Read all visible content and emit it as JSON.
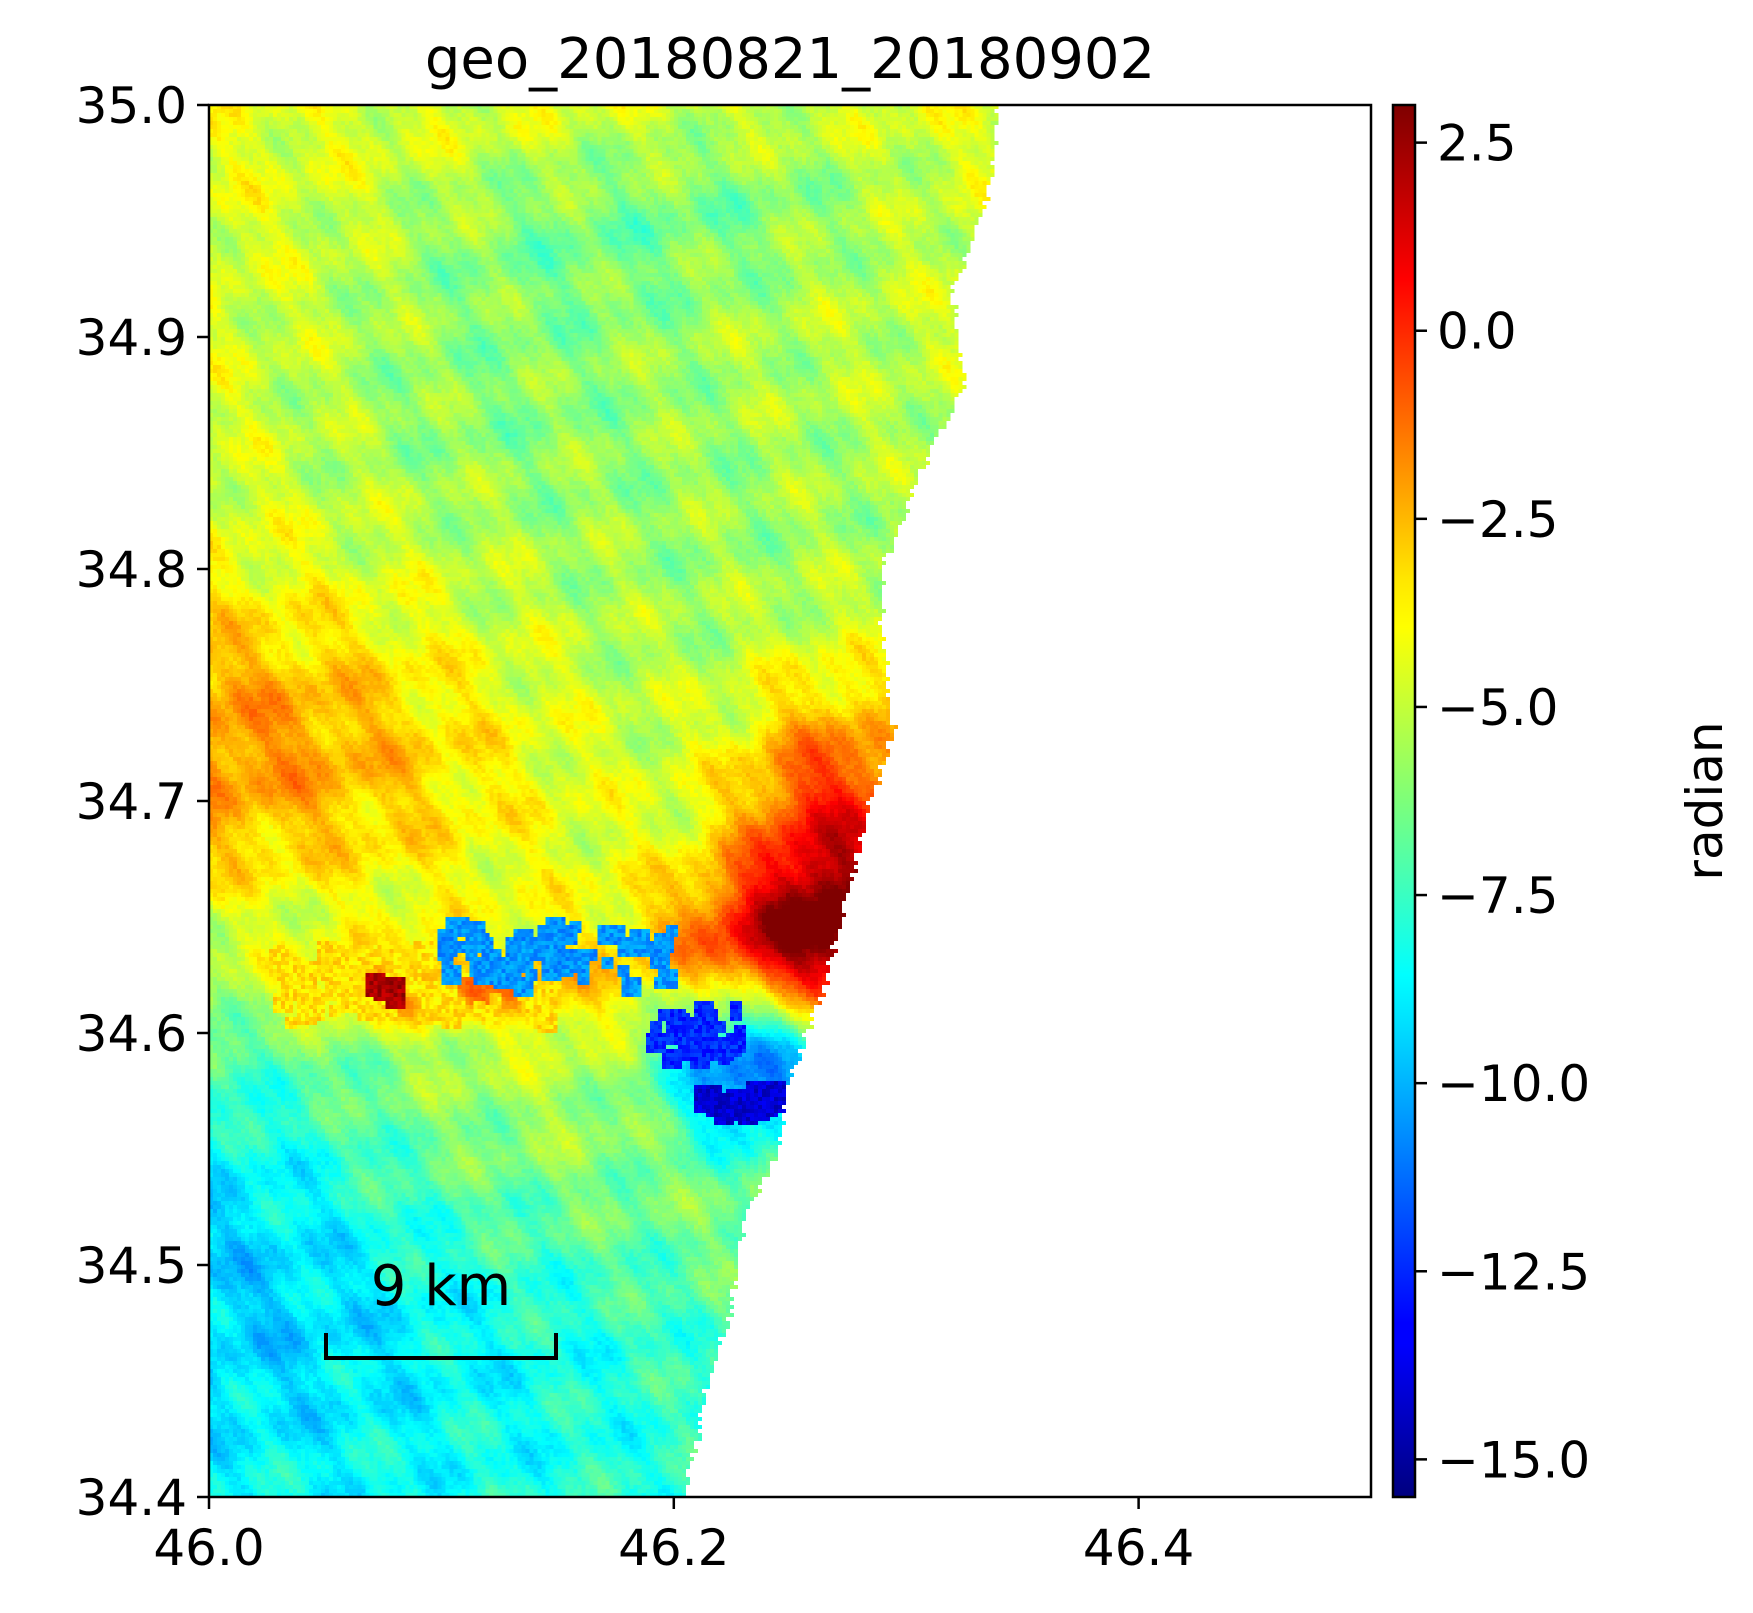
{
  "chart_data": {
    "type": "heatmap",
    "title": "geo_20180821_20180902",
    "xlabel": "",
    "ylabel": "",
    "xlim": [
      46.0,
      46.5
    ],
    "ylim": [
      34.4,
      35.0
    ],
    "x_ticks": [
      "46.0",
      "46.2",
      "46.4"
    ],
    "x_tick_values": [
      46.0,
      46.2,
      46.4
    ],
    "y_ticks": [
      "34.4",
      "34.5",
      "34.6",
      "34.7",
      "34.8",
      "34.9",
      "35.0"
    ],
    "y_tick_values": [
      34.4,
      34.5,
      34.6,
      34.7,
      34.8,
      34.9,
      35.0
    ],
    "colormap": "jet",
    "colorbar": {
      "label": "radian",
      "range": [
        -15.5,
        3.0
      ],
      "ticks": [
        "2.5",
        "0.0",
        "−2.5",
        "−5.0",
        "−7.5",
        "−10.0",
        "−12.5",
        "−15.0"
      ],
      "tick_values": [
        2.5,
        0.0,
        -2.5,
        -5.0,
        -7.5,
        -10.0,
        -12.5,
        -15.0
      ]
    },
    "scale_bar": {
      "label": "9 km"
    },
    "background_value": -4.4,
    "data_edge_lon_by_lat": [
      [
        35.0,
        46.34
      ],
      [
        34.96,
        46.335
      ],
      [
        34.92,
        46.32
      ],
      [
        34.88,
        46.325
      ],
      [
        34.85,
        46.31
      ],
      [
        34.8,
        46.29
      ],
      [
        34.77,
        46.29
      ],
      [
        34.73,
        46.295
      ],
      [
        34.7,
        46.285
      ],
      [
        34.66,
        46.275
      ],
      [
        34.62,
        46.265
      ],
      [
        34.58,
        46.25
      ],
      [
        34.55,
        46.245
      ],
      [
        34.52,
        46.23
      ],
      [
        34.48,
        46.225
      ],
      [
        34.45,
        46.215
      ],
      [
        34.4,
        46.205
      ]
    ],
    "anomalies": [
      {
        "lon": 46.0,
        "lat": 34.72,
        "sx": 0.09,
        "sy": 0.045,
        "value": 2.8
      },
      {
        "lon": 46.23,
        "lat": 34.8,
        "sx": 0.12,
        "sy": 0.09,
        "value": -1.3
      },
      {
        "lon": 46.15,
        "lat": 34.94,
        "sx": 0.06,
        "sy": 0.03,
        "value": -1.4
      },
      {
        "lon": 46.11,
        "lat": 34.87,
        "sx": 0.06,
        "sy": 0.035,
        "value": -0.9
      },
      {
        "lon": 46.24,
        "lat": 34.96,
        "sx": 0.05,
        "sy": 0.025,
        "value": -1.0
      },
      {
        "lon": 46.27,
        "lat": 34.675,
        "sx": 0.03,
        "sy": 0.05,
        "value": 6.0
      },
      {
        "lon": 46.25,
        "lat": 34.64,
        "sx": 0.04,
        "sy": 0.02,
        "value": 4.5
      },
      {
        "lon": 46.235,
        "lat": 34.585,
        "sx": 0.028,
        "sy": 0.025,
        "value": -6.5
      },
      {
        "lon": 46.0,
        "lat": 34.53,
        "sx": 0.06,
        "sy": 0.08,
        "value": -3.0
      },
      {
        "lon": 46.1,
        "lat": 34.62,
        "sx": 0.05,
        "sy": 0.012,
        "value": 3.0
      },
      {
        "lon": 46.12,
        "lat": 34.47,
        "sx": 0.08,
        "sy": 0.05,
        "value": -1.5
      }
    ],
    "speckles": [
      {
        "lon": 46.09,
        "lat": 34.62,
        "value": -3.4,
        "sx": 0.06,
        "sy": 0.016,
        "count": 90
      },
      {
        "lon": 46.15,
        "lat": 34.633,
        "value": -10.5,
        "sx": 0.05,
        "sy": 0.014,
        "count": 70
      },
      {
        "lon": 46.075,
        "lat": 34.618,
        "value": 2.3,
        "sx": 0.006,
        "sy": 0.004,
        "count": 14
      },
      {
        "lon": 46.21,
        "lat": 34.6,
        "value": -12.5,
        "sx": 0.018,
        "sy": 0.012,
        "count": 45
      },
      {
        "lon": 46.23,
        "lat": 34.57,
        "value": -14.0,
        "sx": 0.02,
        "sy": 0.006,
        "count": 40
      }
    ]
  }
}
